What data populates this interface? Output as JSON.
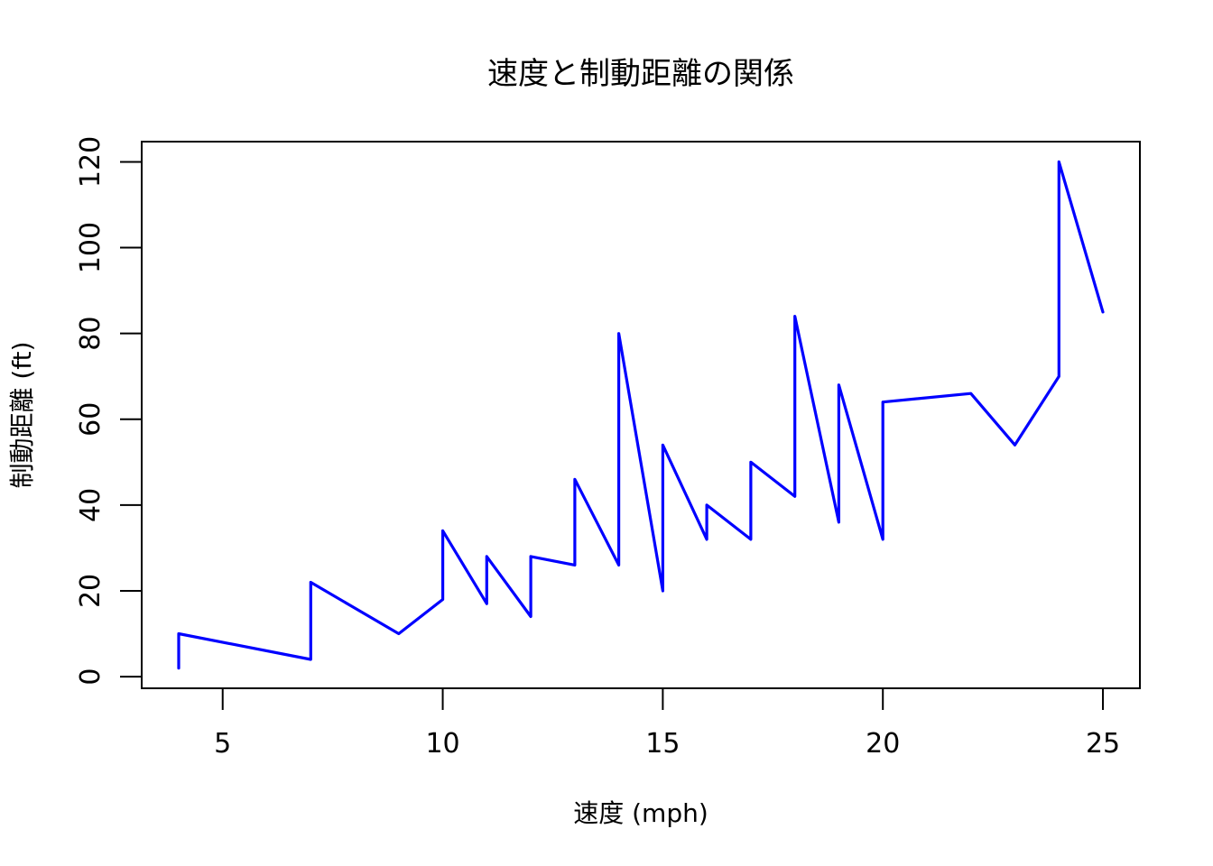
{
  "chart_data": {
    "type": "line",
    "title": "速度と制動距離の関係",
    "xlabel": "速度 (mph)",
    "ylabel": "制動距離 (ft)",
    "xlim": [
      3.16,
      25.84
    ],
    "ylim": [
      -2.72,
      124.72
    ],
    "x_ticks": [
      "5",
      "10",
      "15",
      "20",
      "25"
    ],
    "y_ticks": [
      "0",
      "20",
      "40",
      "60",
      "80",
      "100",
      "120"
    ],
    "series": [
      {
        "color": "#0000ff",
        "x": [
          4,
          4,
          7,
          7,
          8,
          9,
          10,
          10,
          10,
          11,
          11,
          12,
          12,
          12,
          12,
          13,
          13,
          13,
          13,
          14,
          14,
          14,
          14,
          15,
          15,
          15,
          16,
          16,
          17,
          17,
          17,
          18,
          18,
          18,
          18,
          19,
          19,
          19,
          20,
          20,
          20,
          20,
          20,
          22,
          23,
          24,
          24,
          24,
          24,
          25
        ],
        "y": [
          2,
          10,
          4,
          22,
          16,
          10,
          18,
          26,
          34,
          17,
          28,
          14,
          20,
          24,
          28,
          26,
          34,
          34,
          46,
          26,
          36,
          60,
          80,
          20,
          26,
          54,
          32,
          40,
          32,
          40,
          50,
          42,
          56,
          76,
          84,
          36,
          46,
          68,
          32,
          48,
          52,
          56,
          64,
          66,
          54,
          70,
          92,
          93,
          120,
          85
        ]
      }
    ]
  }
}
